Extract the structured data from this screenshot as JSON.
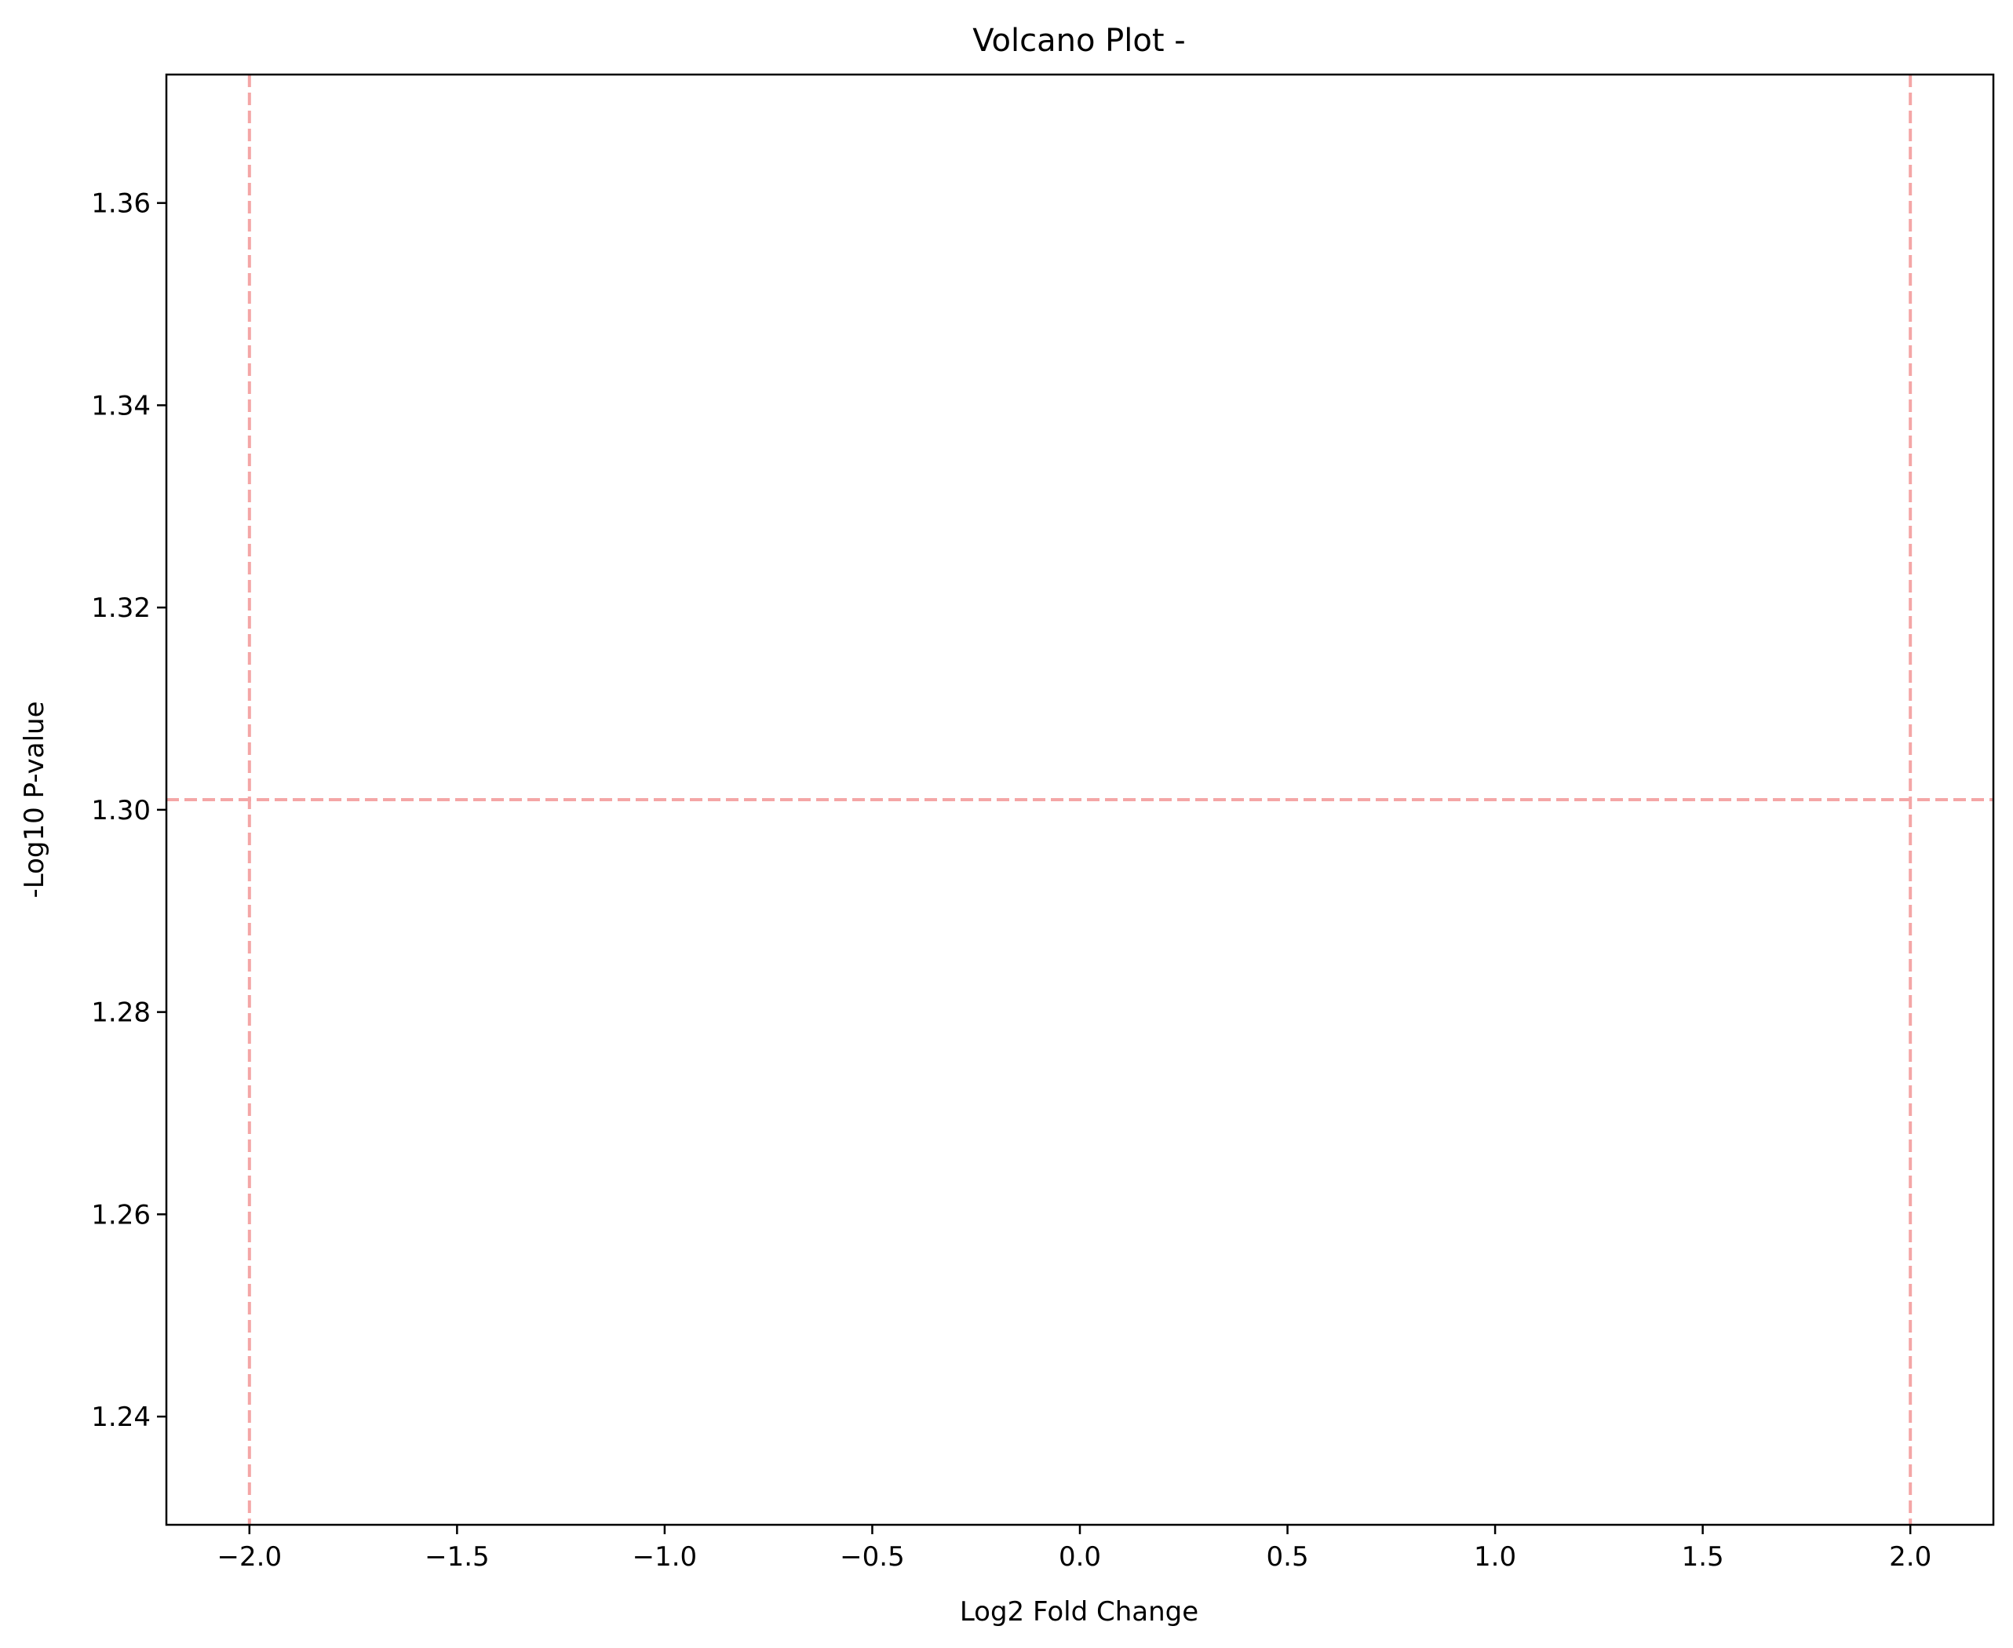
{
  "chart_data": {
    "type": "scatter",
    "title": "Volcano Plot -",
    "xlabel": "Log2 Fold Change",
    "ylabel": "-Log10 P-value",
    "xlim": [
      -2.2,
      2.2
    ],
    "ylim": [
      1.2293,
      1.3727
    ],
    "grid": false,
    "x_ticks": [
      -2.0,
      -1.5,
      -1.0,
      -0.5,
      0.0,
      0.5,
      1.0,
      1.5,
      2.0
    ],
    "x_tick_labels": [
      "−2.0",
      "−1.5",
      "−1.0",
      "−0.5",
      "0.0",
      "0.5",
      "1.0",
      "1.5",
      "2.0"
    ],
    "y_ticks": [
      1.24,
      1.26,
      1.28,
      1.3,
      1.32,
      1.34,
      1.36
    ],
    "y_tick_labels": [
      "1.24",
      "1.26",
      "1.28",
      "1.30",
      "1.32",
      "1.34",
      "1.36"
    ],
    "series": [],
    "threshold_lines": {
      "color": "#f4a6a6",
      "style": "dashed",
      "vertical_x": [
        -2.0,
        2.0
      ],
      "horizontal_y": [
        1.301
      ]
    }
  }
}
